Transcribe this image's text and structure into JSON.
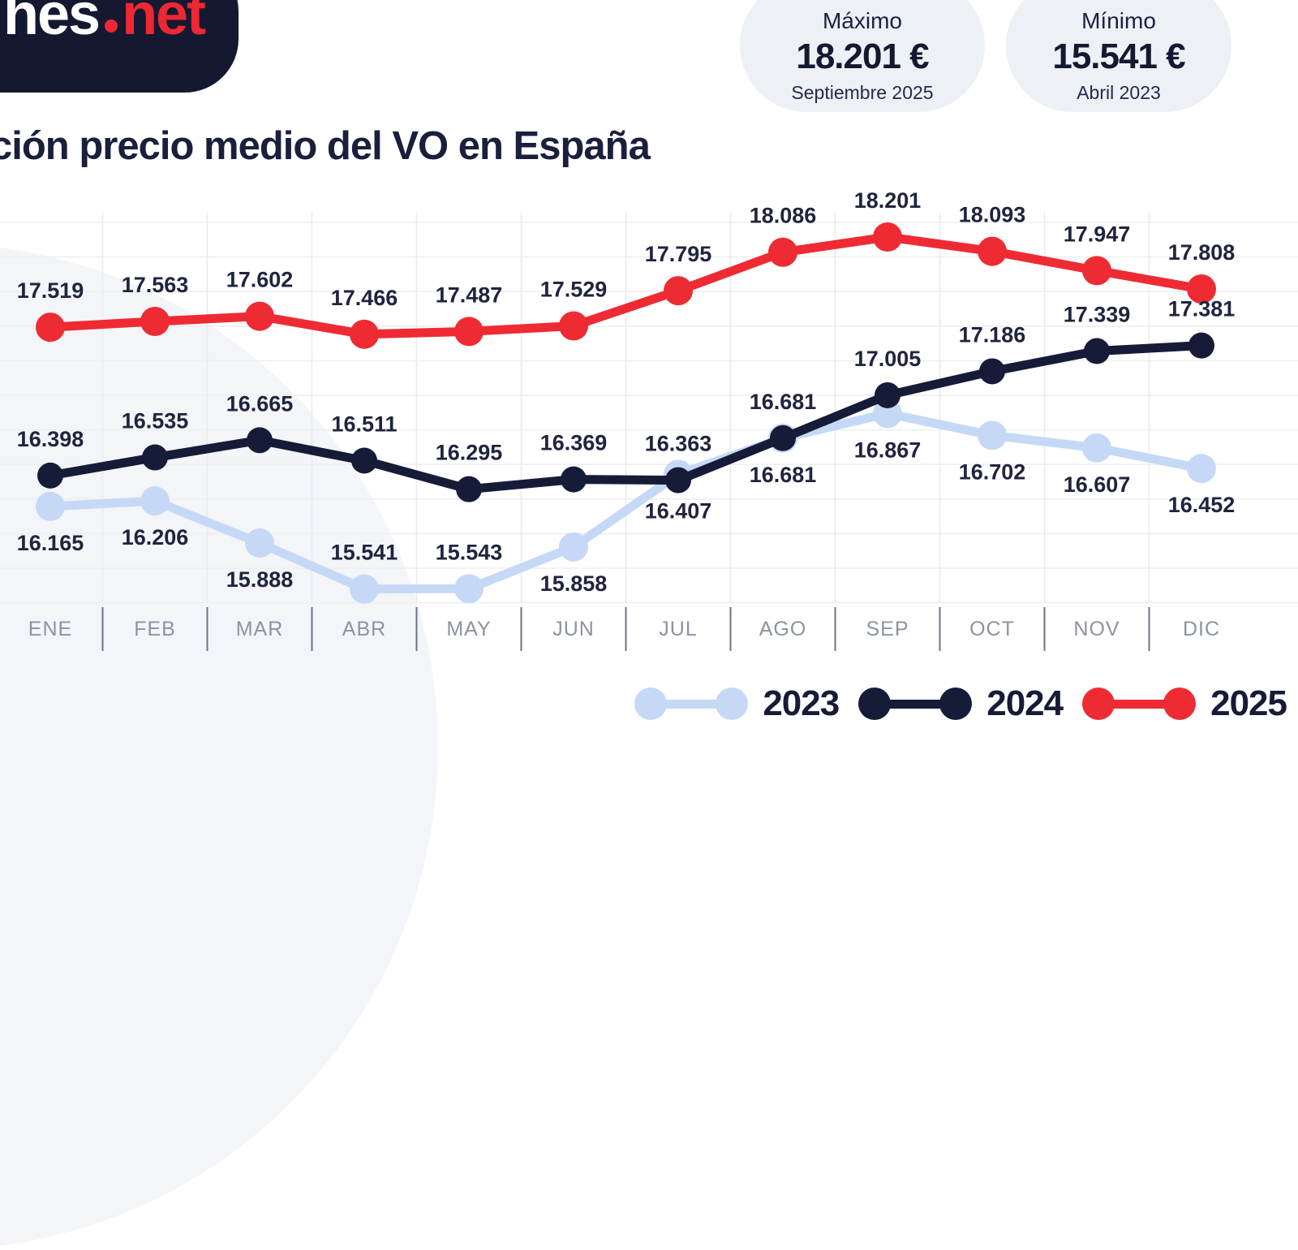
{
  "logo": {
    "prefix": "hes",
    "suffix": "net"
  },
  "header_badges": [
    {
      "label": "Máximo",
      "value": "18.201 €",
      "date": "Septiembre 2025"
    },
    {
      "label": "Mínimo",
      "value": "15.541 €",
      "date": "Abril 2023"
    }
  ],
  "title": "ción precio medio del VO en España",
  "chart_data": {
    "type": "line",
    "categories": [
      "ENE",
      "FEB",
      "MAR",
      "ABR",
      "MAY",
      "JUN",
      "JUL",
      "AGO",
      "SEP",
      "OCT",
      "NOV",
      "DIC"
    ],
    "series": [
      {
        "name": "2023",
        "color": "#c5d9f6",
        "values": [
          16165,
          16206,
          15888,
          15541,
          15543,
          15858,
          16407,
          16681,
          16867,
          16702,
          16607,
          16452
        ],
        "label_position": [
          "below",
          "below",
          "below",
          "above",
          "above",
          "below",
          "below",
          "below",
          "below",
          "below",
          "below",
          "below"
        ]
      },
      {
        "name": "2024",
        "color": "#161b38",
        "values": [
          16398,
          16535,
          16665,
          16511,
          16295,
          16369,
          16363,
          16681,
          17005,
          17186,
          17339,
          17381
        ],
        "label_position": [
          "above",
          "above",
          "above",
          "above",
          "above",
          "above",
          "above",
          "above",
          "above",
          "above",
          "above",
          "above"
        ]
      },
      {
        "name": "2025",
        "color": "#ee2b33",
        "values": [
          17519,
          17563,
          17602,
          17466,
          17487,
          17529,
          17795,
          18086,
          18201,
          18093,
          17947,
          17808
        ],
        "label_position": [
          "above",
          "above",
          "above",
          "above",
          "above",
          "above",
          "above",
          "above",
          "above",
          "above",
          "above",
          "above"
        ]
      }
    ],
    "ylim": [
      15440,
      18400
    ],
    "grid": true,
    "legend_position": "bottom-right",
    "value_format": "thousands-dot"
  },
  "colors": {
    "accent_red": "#ee2b33",
    "navy": "#161b38",
    "light_blue": "#c5d9f6",
    "badge_bg": "#edf0f5",
    "label_text": "#20243e",
    "axis_text": "#8d93a2",
    "grid_line": "#efeff2",
    "tick_line": "#6d7386",
    "blob": "#f3f5f8"
  }
}
